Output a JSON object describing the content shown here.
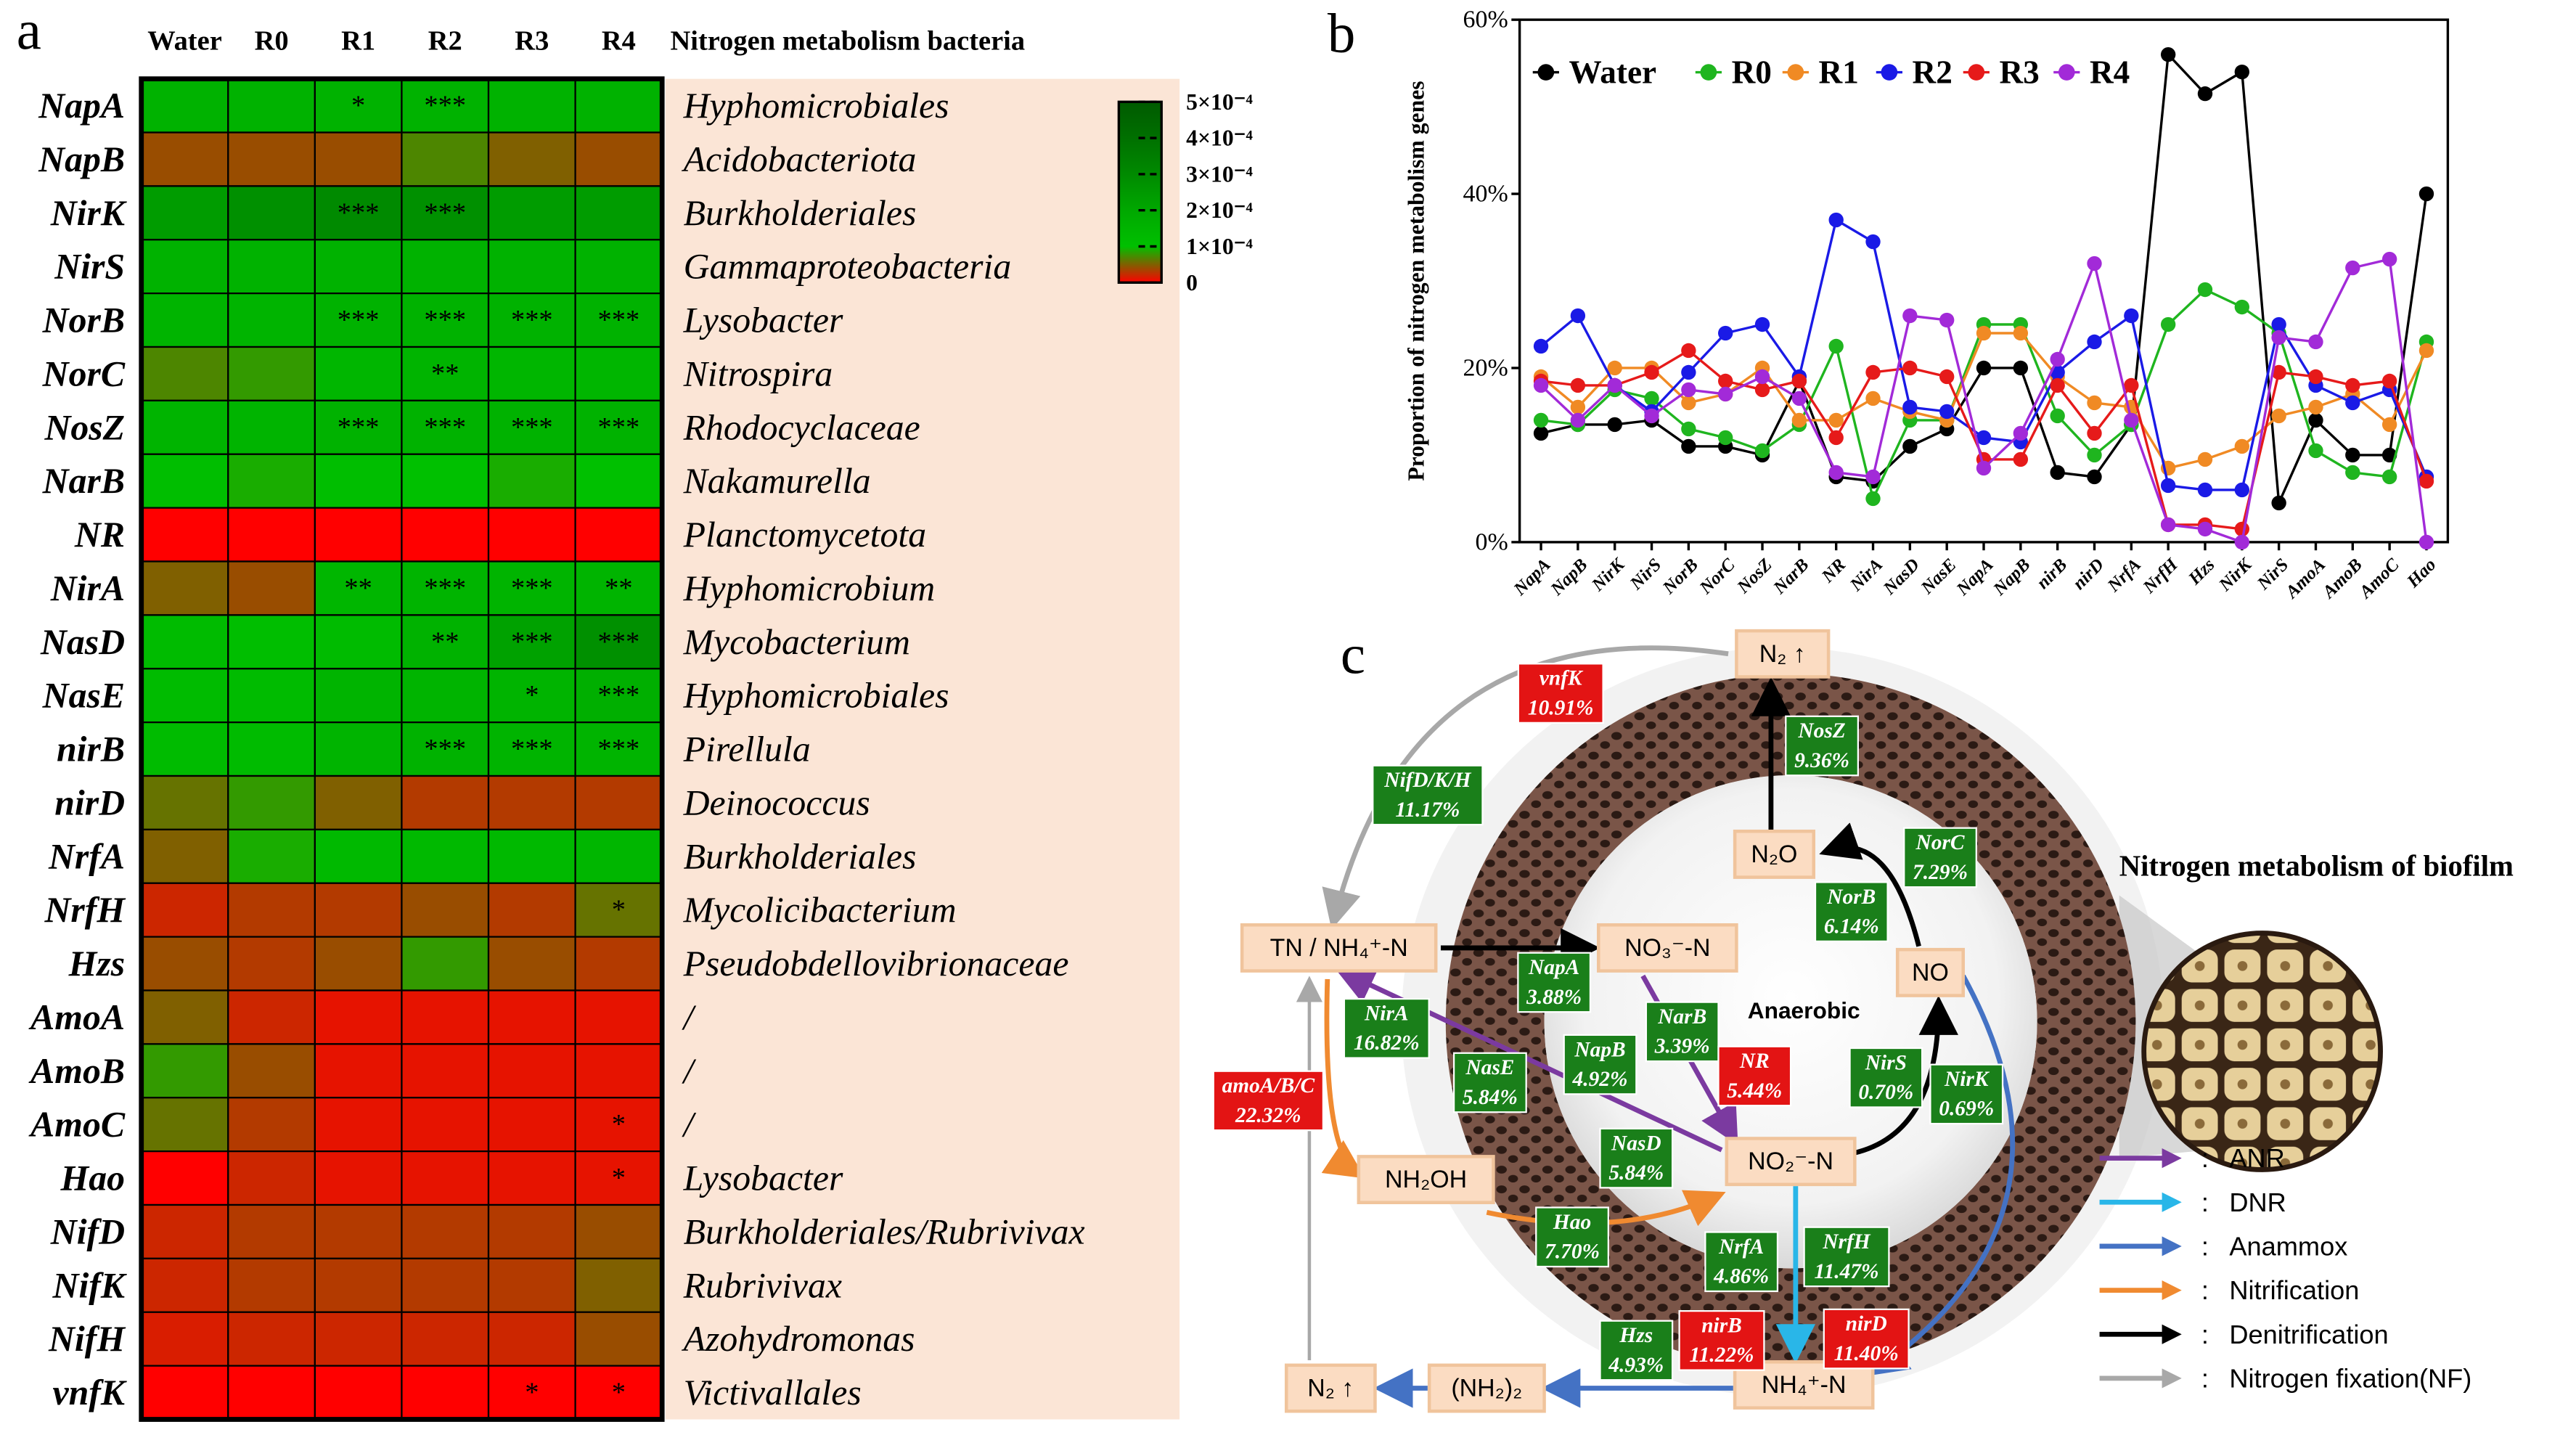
{
  "panel_a": {
    "label": "a",
    "columns": [
      "Water",
      "R0",
      "R1",
      "R2",
      "R3",
      "R4"
    ],
    "bacteria_header": "Nitrogen metabolism bacteria",
    "genes": [
      "NapA",
      "NapB",
      "NirK",
      "NirS",
      "NorB",
      "NorC",
      "NosZ",
      "NarB",
      "NR",
      "NirA",
      "NasD",
      "NasE",
      "nirB",
      "nirD",
      "NrfA",
      "NrfH",
      "Hzs",
      "AmoA",
      "AmoB",
      "AmoC",
      "Hao",
      "NifD",
      "NifK",
      "NifH",
      "vnfK"
    ],
    "bacteria": [
      "Hyphomicrobiales",
      "Acidobacteriota",
      "Burkholderiales",
      "Gammaproteobacteria",
      "Lysobacter",
      "Nitrospira",
      "Rhodocyclaceae",
      "Nakamurella",
      "Planctomycetota",
      "Hyphomicrobium",
      "Mycobacterium",
      "Hyphomicrobiales",
      "Pirellula",
      "Deinococcus",
      "Burkholderiales",
      "Mycolicibacterium",
      "Pseudobdellovibrionaceae",
      "/",
      "/",
      "/",
      "Lysobacter",
      "Burkholderiales/Rubrivivax",
      "Rubrivivax",
      "Azohydromonas",
      "Victivallales"
    ],
    "values": [
      [
        0.00016,
        0.00016,
        0.00016,
        0.00016,
        0.00016,
        0.00016
      ],
      [
        4e-05,
        4e-05,
        4e-05,
        7e-05,
        5e-05,
        4e-05
      ],
      [
        0.00024,
        0.00028,
        0.0003,
        0.00028,
        0.00024,
        0.00024
      ],
      [
        0.00016,
        0.00016,
        0.00016,
        0.00016,
        0.00016,
        0.00016
      ],
      [
        0.00015,
        0.00015,
        0.00016,
        0.00016,
        0.00016,
        0.00016
      ],
      [
        7e-05,
        8e-05,
        0.00014,
        0.00015,
        0.00014,
        0.00014
      ],
      [
        0.00015,
        0.00015,
        0.00016,
        0.00016,
        0.00016,
        0.00016
      ],
      [
        0.00011,
        9e-05,
        0.00011,
        0.0001,
        9e-05,
        0.0001
      ],
      [
        0,
        0,
        0,
        0,
        0,
        0
      ],
      [
        5e-05,
        4e-05,
        0.00014,
        0.00015,
        0.00015,
        0.00015
      ],
      [
        0.00012,
        0.00011,
        0.00012,
        0.00016,
        0.00022,
        0.00028
      ],
      [
        0.00012,
        0.00012,
        0.00015,
        0.00015,
        0.00015,
        0.00017
      ],
      [
        0.00012,
        0.00012,
        0.00015,
        0.00016,
        0.00015,
        0.00015
      ],
      [
        6e-05,
        8e-05,
        5e-05,
        3e-05,
        3e-05,
        3e-05
      ],
      [
        5e-05,
        9e-05,
        0.00013,
        0.00013,
        0.00013,
        0.00014
      ],
      [
        2e-05,
        3e-05,
        3e-05,
        4e-05,
        3e-05,
        6e-05
      ],
      [
        4e-05,
        3e-05,
        4e-05,
        8e-05,
        4e-05,
        3e-05
      ],
      [
        5e-05,
        2e-05,
        1e-05,
        1e-05,
        1e-05,
        1e-05
      ],
      [
        8e-05,
        4e-05,
        1e-05,
        1e-05,
        1e-05,
        1e-05
      ],
      [
        6e-05,
        3e-05,
        1e-05,
        1e-05,
        1e-05,
        1e-05
      ],
      [
        0,
        2e-05,
        1e-05,
        1e-05,
        1e-05,
        1e-05
      ],
      [
        2e-05,
        3e-05,
        3e-05,
        3e-05,
        3e-05,
        4e-05
      ],
      [
        2e-05,
        3e-05,
        3e-05,
        3e-05,
        3e-05,
        5e-05
      ],
      [
        1.5e-05,
        2e-05,
        2e-05,
        2e-05,
        2e-05,
        4e-05
      ],
      [
        0,
        0,
        0,
        0,
        0,
        0
      ]
    ],
    "stars": [
      [
        null,
        null,
        "*",
        "***",
        null,
        null
      ],
      [
        null,
        null,
        null,
        null,
        null,
        null
      ],
      [
        null,
        null,
        "***",
        "***",
        null,
        null
      ],
      [
        null,
        null,
        null,
        null,
        null,
        null
      ],
      [
        null,
        null,
        "***",
        "***",
        "***",
        "***"
      ],
      [
        null,
        null,
        null,
        "**",
        null,
        null
      ],
      [
        null,
        null,
        "***",
        "***",
        "***",
        "***"
      ],
      [
        null,
        null,
        null,
        null,
        null,
        null
      ],
      [
        null,
        null,
        null,
        null,
        null,
        null
      ],
      [
        null,
        null,
        "**",
        "***",
        "***",
        "**"
      ],
      [
        null,
        null,
        null,
        "**",
        "***",
        "***"
      ],
      [
        null,
        null,
        null,
        null,
        "*",
        "***"
      ],
      [
        null,
        null,
        null,
        "***",
        "***",
        "***"
      ],
      [
        null,
        null,
        null,
        null,
        null,
        null
      ],
      [
        null,
        null,
        null,
        null,
        null,
        null
      ],
      [
        null,
        null,
        null,
        null,
        null,
        "*"
      ],
      [
        null,
        null,
        null,
        null,
        null,
        null
      ],
      [
        null,
        null,
        null,
        null,
        null,
        null
      ],
      [
        null,
        null,
        null,
        null,
        null,
        null
      ],
      [
        null,
        null,
        null,
        null,
        null,
        "*"
      ],
      [
        null,
        null,
        null,
        null,
        null,
        "*"
      ],
      [
        null,
        null,
        null,
        null,
        null,
        null
      ],
      [
        null,
        null,
        null,
        null,
        null,
        null
      ],
      [
        null,
        null,
        null,
        null,
        null,
        null
      ],
      [
        null,
        null,
        null,
        null,
        "*",
        "*"
      ]
    ],
    "colorbar": {
      "lim": [
        0,
        0.0005
      ],
      "ticks": [
        {
          "value": 0.0005,
          "label": "5×10⁻⁴"
        },
        {
          "value": 0.0004,
          "label": "4×10⁻⁴"
        },
        {
          "value": 0.0003,
          "label": "3×10⁻⁴"
        },
        {
          "value": 0.0002,
          "label": "2×10⁻⁴"
        },
        {
          "value": 0.0001,
          "label": "1×10⁻⁴"
        },
        0
      ],
      "colors": [
        "#ff0000",
        "#00c000",
        "#00a800",
        "#008a00",
        "#007000",
        "#005a00"
      ]
    }
  },
  "chart_data": {
    "type": "line",
    "panel_label": "b",
    "ylabel": "Proportion of nitrogen metabolism genes",
    "categories": [
      "NapA",
      "NapB",
      "NirK",
      "NirS",
      "NorB",
      "NorC",
      "NosZ",
      "NarB",
      "NR",
      "NirA",
      "NasD",
      "NasE",
      "NapA",
      "NapB",
      "nirB",
      "nirD",
      "NrfA",
      "NrfH",
      "Hzs",
      "NirK",
      "NirS",
      "AmoA",
      "AmoB",
      "AmoC",
      "Hao"
    ],
    "ylim": [
      0,
      60
    ],
    "yticks": [
      {
        "value": 0,
        "label": "0%"
      },
      {
        "value": 20,
        "label": "20%"
      },
      {
        "value": 40,
        "label": "40%"
      },
      {
        "value": 60,
        "label": "60%"
      }
    ],
    "legend": "upper left",
    "series": [
      {
        "name": "Water",
        "color": "#000000",
        "values": [
          12.5,
          13.5,
          13.5,
          14,
          11,
          11,
          10,
          18.5,
          7.5,
          7,
          11,
          13,
          20,
          20,
          8,
          7.5,
          13.5,
          56,
          51.5,
          54,
          4.5,
          14,
          10,
          10,
          40
        ]
      },
      {
        "name": "R0",
        "color": "#1fb51f",
        "values": [
          14,
          13.5,
          17.5,
          16.5,
          13,
          12,
          10.5,
          13.5,
          22.5,
          5,
          14,
          14,
          25,
          25,
          14.5,
          10,
          13.5,
          25,
          29,
          27,
          24,
          10.5,
          8,
          7.5,
          23
        ]
      },
      {
        "name": "R1",
        "color": "#f08a24",
        "values": [
          19,
          15.5,
          20,
          20,
          16,
          17,
          20,
          14,
          14,
          16.5,
          15,
          14,
          24,
          24,
          19,
          16,
          15.5,
          8.5,
          9.5,
          11,
          14.5,
          15.5,
          17,
          13.5,
          22
        ]
      },
      {
        "name": "R2",
        "color": "#1a1ae6",
        "values": [
          22.5,
          26,
          18,
          15,
          19.5,
          24,
          25,
          19,
          37,
          34.5,
          15.5,
          15,
          12,
          11.5,
          19.5,
          23,
          26,
          6.5,
          6,
          6,
          25,
          18,
          16,
          17.5,
          7.5
        ]
      },
      {
        "name": "R3",
        "color": "#e61a1a",
        "values": [
          18.5,
          18,
          18,
          19.5,
          22,
          18.5,
          17.5,
          18.5,
          12,
          19.5,
          20,
          19,
          9.5,
          9.5,
          18,
          12.5,
          18,
          2,
          2,
          1.5,
          19.5,
          19,
          18,
          18.5,
          7
        ]
      },
      {
        "name": "R4",
        "color": "#a22ad8",
        "values": [
          18,
          14,
          18,
          14.5,
          17.5,
          17,
          19,
          16.5,
          8,
          7.5,
          26,
          25.5,
          8.5,
          12.5,
          21,
          32,
          14,
          2,
          1.5,
          0,
          23.5,
          23,
          31.5,
          32.5,
          0
        ]
      }
    ]
  },
  "panel_c": {
    "label": "c",
    "title": "Nitrogen metabolism of biofilm",
    "center_text": "Anaerobic",
    "nodes": [
      "N₂ ↑",
      "N₂O",
      "NO",
      "NO₃⁻-N",
      "TN / NH₄⁺-N",
      "NO₂⁻-N",
      "NH₂OH",
      "NH₄⁺-N",
      "(NH₂)₂",
      "N₂ ↑"
    ],
    "gene_labels": [
      {
        "name": "vnfK",
        "percent": "10.91%",
        "color": "#e31414"
      },
      {
        "name": "NifD/K/H",
        "percent": "11.17%",
        "color": "#1a7f1a"
      },
      {
        "name": "NosZ",
        "percent": "9.36%",
        "color": "#1a7f1a"
      },
      {
        "name": "NorC",
        "percent": "7.29%",
        "color": "#1a7f1a"
      },
      {
        "name": "NorB",
        "percent": "6.14%",
        "color": "#1a7f1a"
      },
      {
        "name": "NapA",
        "percent": "3.88%",
        "color": "#1a7f1a"
      },
      {
        "name": "NarB",
        "percent": "3.39%",
        "color": "#1a7f1a"
      },
      {
        "name": "NR",
        "percent": "5.44%",
        "color": "#e31414"
      },
      {
        "name": "NapB",
        "percent": "4.92%",
        "color": "#1a7f1a"
      },
      {
        "name": "NirA",
        "percent": "16.82%",
        "color": "#1a7f1a"
      },
      {
        "name": "NasE",
        "percent": "5.84%",
        "color": "#1a7f1a"
      },
      {
        "name": "NirS",
        "percent": "0.70%",
        "color": "#1a7f1a"
      },
      {
        "name": "NirK",
        "percent": "0.69%",
        "color": "#1a7f1a"
      },
      {
        "name": "amoA/B/C",
        "percent": "22.32%",
        "color": "#e31414"
      },
      {
        "name": "NasD",
        "percent": "5.84%",
        "color": "#1a7f1a"
      },
      {
        "name": "Hao",
        "percent": "7.70%",
        "color": "#1a7f1a"
      },
      {
        "name": "NrfA",
        "percent": "4.86%",
        "color": "#1a7f1a"
      },
      {
        "name": "NrfH",
        "percent": "11.47%",
        "color": "#1a7f1a"
      },
      {
        "name": "nirB",
        "percent": "11.22%",
        "color": "#e31414"
      },
      {
        "name": "nirD",
        "percent": "11.40%",
        "color": "#e31414"
      },
      {
        "name": "Hzs",
        "percent": "4.93%",
        "color": "#1a7f1a"
      }
    ],
    "legend": {
      "separator": ":",
      "items": [
        {
          "label": "ANR",
          "color": "#7b3aa0"
        },
        {
          "label": "DNR",
          "color": "#29b6e8"
        },
        {
          "label": "Anammox",
          "color": "#4472c4"
        },
        {
          "label": "Nitrification",
          "color": "#f08a30"
        },
        {
          "label": "Denitrification",
          "color": "#000000"
        },
        {
          "label": "Nitrogen fixation(NF)",
          "color": "#a8a8a8"
        }
      ]
    }
  }
}
